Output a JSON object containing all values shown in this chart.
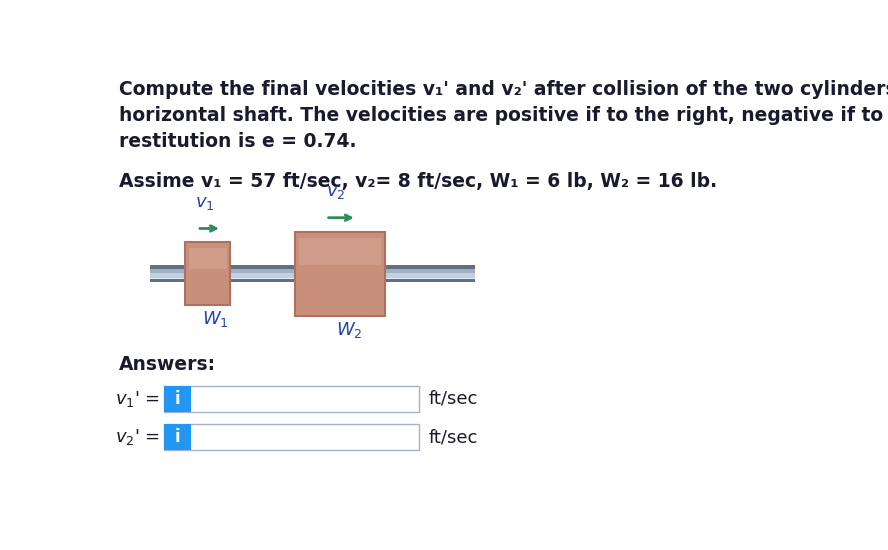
{
  "bg_color": "#ffffff",
  "text_color": "#1a1a2e",
  "blue_color": "#2196F3",
  "arrow_color": "#2e8b57",
  "shaft_mid_color": "#c8d4e8",
  "shaft_edge_color": "#8090a8",
  "shaft_highlight": "#e8eef8",
  "cyl_face_color": "#c8907a",
  "cyl_edge_color": "#b07060",
  "cyl_highlight": "#dba898",
  "label_color": "#2244aa",
  "line1": "Compute the final velocities v₁' and v₂' after collision of the two cylinders which slide on the smooth",
  "line2": "horizontal shaft. The velocities are positive if to the right, negative if to the left. The coefficient of",
  "line3": "restitution is e = 0.74.",
  "param_line": "Assime v₁ = 57 ft/sec, v₂= 8 ft/sec, W₁ = 6 lb, W₂ = 16 lb.",
  "answers_label": "Answers:",
  "units": "ft/sec"
}
